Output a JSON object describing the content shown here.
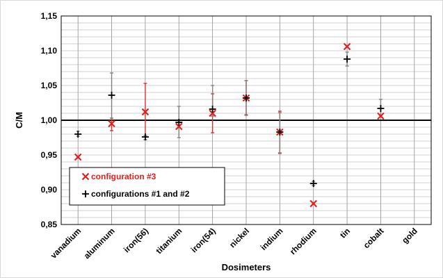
{
  "chart_data": {
    "type": "scatter",
    "title": "",
    "xlabel": "Dosimeters",
    "ylabel": "C/M",
    "categories": [
      "vanadium",
      "aluminum",
      "iron(56)",
      "titanium",
      "iron(54)",
      "nickel",
      "indium",
      "rhodium",
      "tin",
      "cobalt",
      "gold"
    ],
    "ylim": [
      0.85,
      1.15
    ],
    "y_ticks": [
      "0,85",
      "0,90",
      "0,95",
      "1,00",
      "1,05",
      "1,10",
      "1,15"
    ],
    "reference_line": 1.0,
    "grid": true,
    "legend_position": "lower-left",
    "series": [
      {
        "name": "configuration #3",
        "marker": "x",
        "color": "#e41e1e",
        "values": [
          0.947,
          0.995,
          1.012,
          0.991,
          1.01,
          1.032,
          0.983,
          0.88,
          1.106,
          1.006,
          null
        ],
        "err_low": [
          null,
          0.985,
          0.972,
          null,
          0.982,
          1.008,
          0.953,
          null,
          null,
          null,
          null
        ],
        "err_high": [
          null,
          1.003,
          1.053,
          null,
          1.038,
          1.057,
          1.013,
          null,
          null,
          null,
          null
        ]
      },
      {
        "name": "configurations #1 and #2",
        "marker": "+",
        "color": "#000000",
        "values": [
          0.98,
          1.036,
          0.976,
          0.997,
          1.016,
          1.032,
          0.983,
          0.909,
          1.088,
          1.017,
          null
        ],
        "err_low": [
          0.977,
          1.003,
          0.972,
          0.975,
          1.006,
          1.007,
          0.952,
          0.906,
          1.078,
          1.007,
          null
        ],
        "err_high": [
          0.984,
          1.068,
          0.978,
          1.02,
          1.05,
          1.057,
          1.011,
          0.912,
          1.098,
          1.03,
          null
        ]
      }
    ]
  }
}
